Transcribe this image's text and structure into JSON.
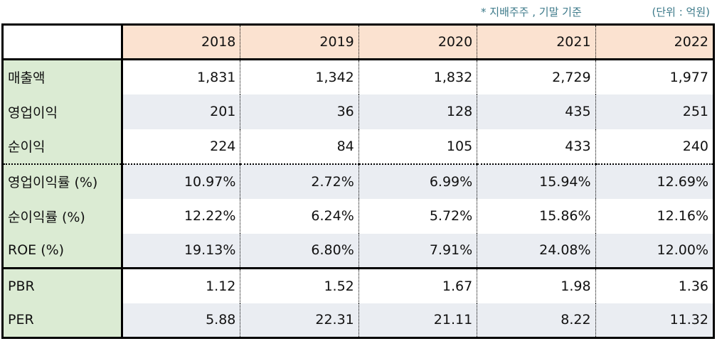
{
  "notes": {
    "basis": "* 지배주주 , 기말 기준",
    "unit": "(단위 : 억원)"
  },
  "table": {
    "columns": [
      "",
      "2018",
      "2019",
      "2020",
      "2021",
      "2022"
    ],
    "rows": [
      {
        "label": "매출액",
        "values": [
          "1,831",
          "1,342",
          "1,832",
          "2,729",
          "1,977"
        ]
      },
      {
        "label": "영업이익",
        "values": [
          "201",
          "36",
          "128",
          "435",
          "251"
        ]
      },
      {
        "label": "순이익",
        "values": [
          "224",
          "84",
          "105",
          "433",
          "240"
        ]
      },
      {
        "label": "영업이익률 (%)",
        "values": [
          "10.97%",
          "2.72%",
          "6.99%",
          "15.94%",
          "12.69%"
        ]
      },
      {
        "label": "순이익률 (%)",
        "values": [
          "12.22%",
          "6.24%",
          "5.72%",
          "15.86%",
          "12.16%"
        ]
      },
      {
        "label": "ROE (%)",
        "values": [
          "19.13%",
          "6.80%",
          "7.91%",
          "24.08%",
          "12.00%"
        ]
      },
      {
        "label": "PBR",
        "values": [
          "1.12",
          "1.52",
          "1.67",
          "1.98",
          "1.36"
        ]
      },
      {
        "label": "PER",
        "values": [
          "5.88",
          "22.31",
          "21.11",
          "8.22",
          "11.32"
        ]
      }
    ]
  },
  "colors": {
    "header_bg": "#fbe2d0",
    "label_bg": "#dbebd3",
    "alt_row_bg": "#eaedf2",
    "note_text": "#3d7a8a"
  }
}
